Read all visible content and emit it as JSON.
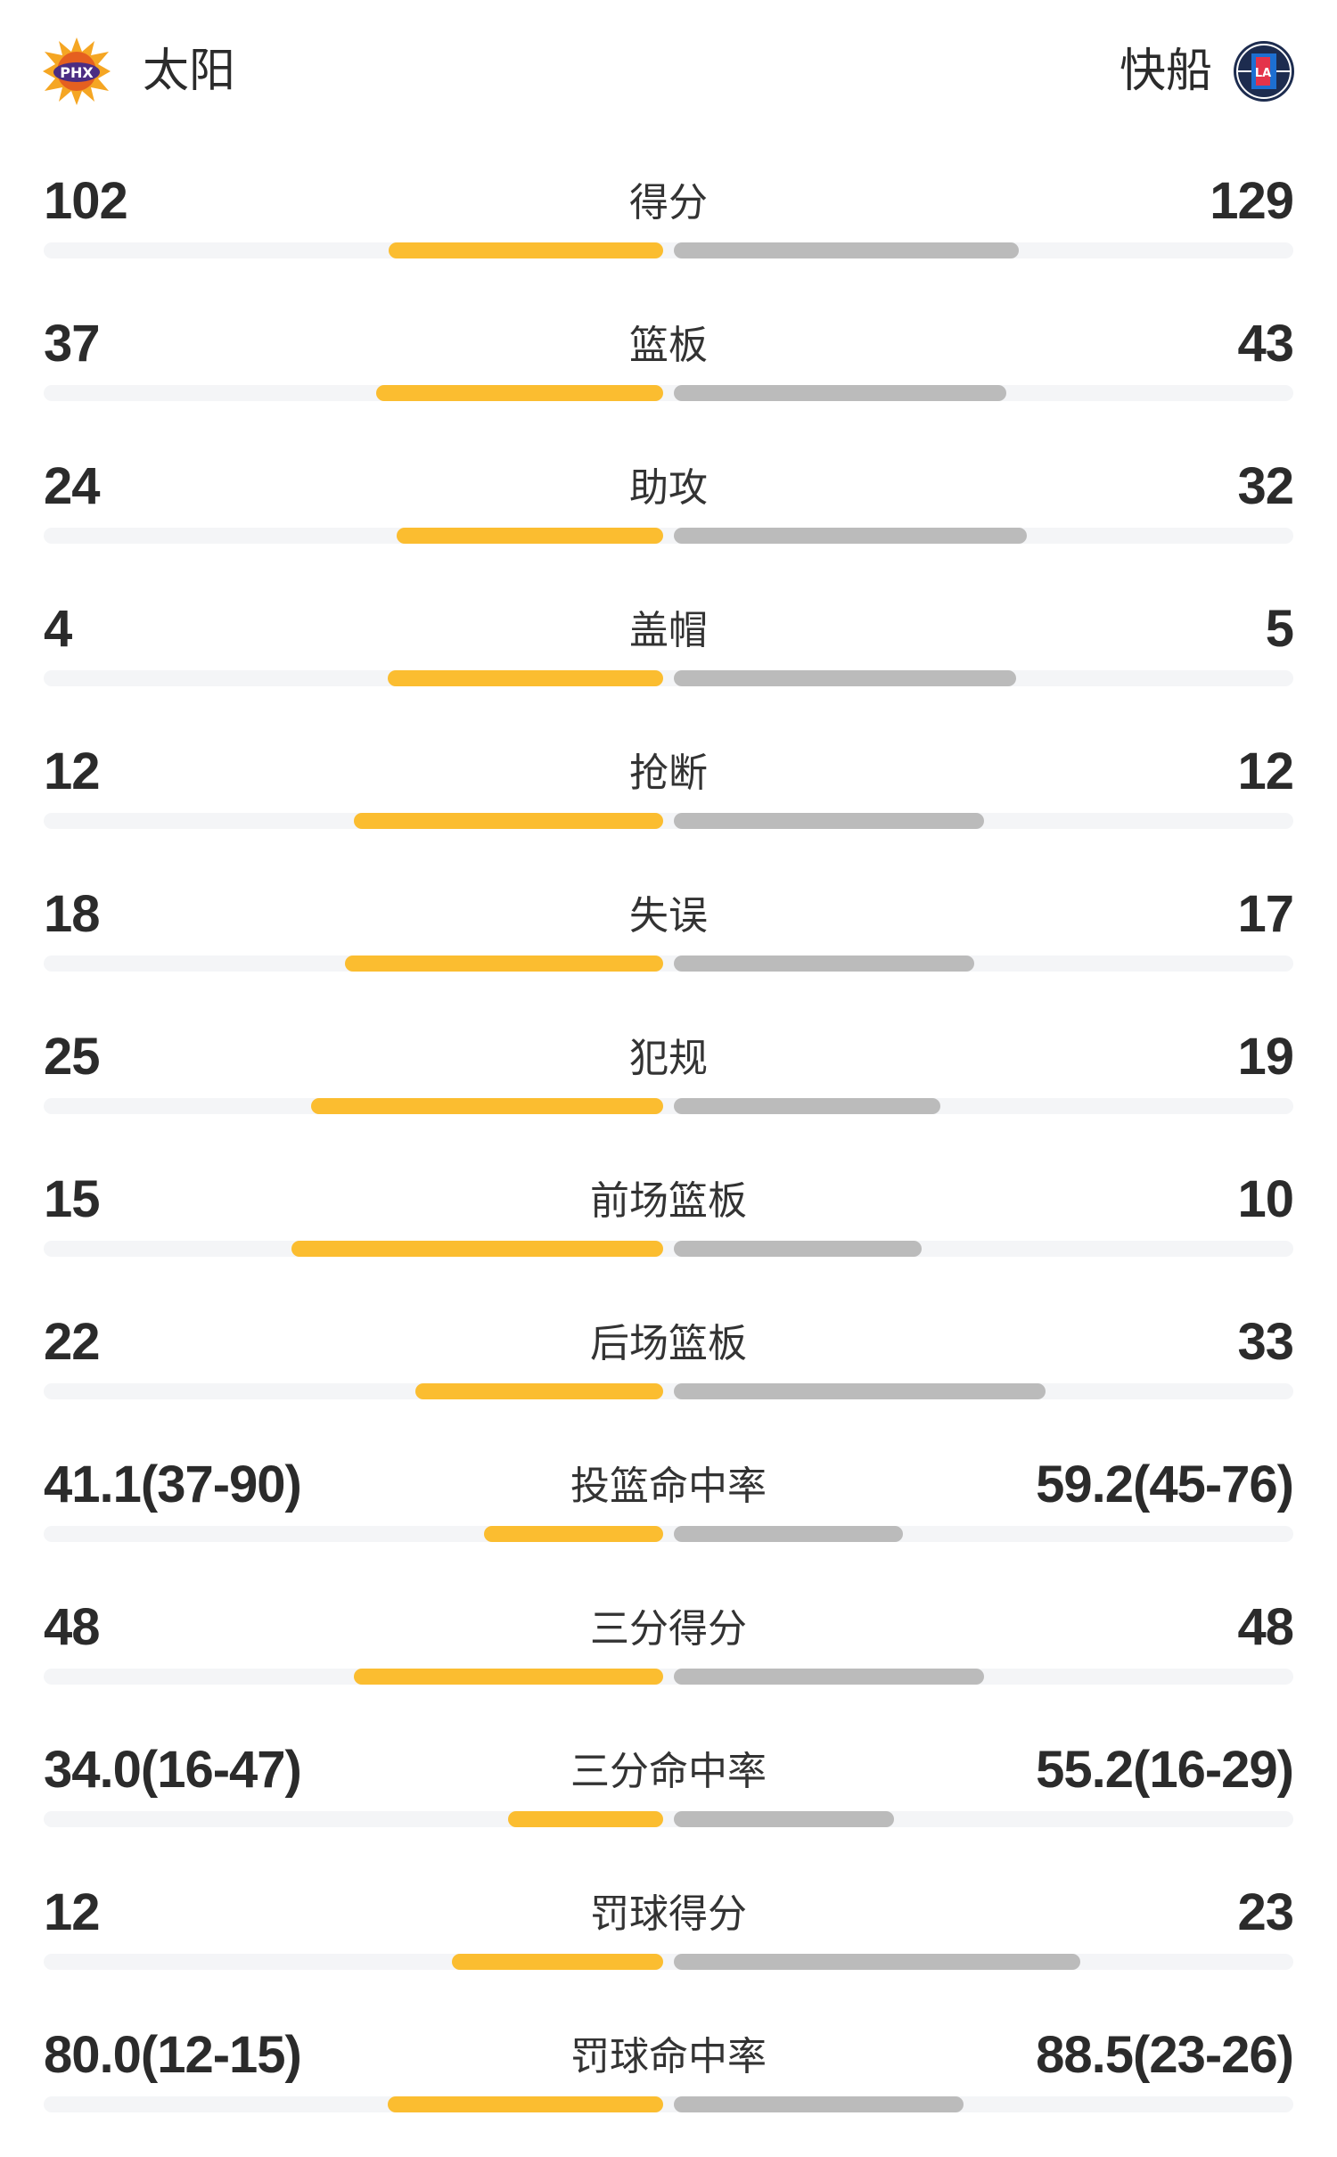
{
  "header": {
    "home_team": "太阳",
    "away_team": "快船",
    "home_logo_text": "PHX",
    "away_logo_text": "LA"
  },
  "colors": {
    "home_bar": "#fbbd30",
    "away_bar": "#bbbbbb",
    "track": "#f4f5f7"
  },
  "stats": [
    {
      "label": "得分",
      "home": "102",
      "away": "129",
      "home_fill": 0.443,
      "away_fill": 0.557
    },
    {
      "label": "篮板",
      "home": "37",
      "away": "43",
      "home_fill": 0.463,
      "away_fill": 0.537
    },
    {
      "label": "助攻",
      "home": "24",
      "away": "32",
      "home_fill": 0.43,
      "away_fill": 0.57
    },
    {
      "label": "盖帽",
      "home": "4",
      "away": "5",
      "home_fill": 0.445,
      "away_fill": 0.553
    },
    {
      "label": "抢断",
      "home": "12",
      "away": "12",
      "home_fill": 0.5,
      "away_fill": 0.5
    },
    {
      "label": "失误",
      "home": "18",
      "away": "17",
      "home_fill": 0.513,
      "away_fill": 0.485
    },
    {
      "label": "犯规",
      "home": "25",
      "away": "19",
      "home_fill": 0.568,
      "away_fill": 0.43
    },
    {
      "label": "前场篮板",
      "home": "15",
      "away": "10",
      "home_fill": 0.6,
      "away_fill": 0.4
    },
    {
      "label": "后场篮板",
      "home": "22",
      "away": "33",
      "home_fill": 0.4,
      "away_fill": 0.6
    },
    {
      "label": "投篮命中率",
      "home": "41.1(37-90)",
      "away": "59.2(45-76)",
      "home_fill": 0.289,
      "away_fill": 0.37
    },
    {
      "label": "三分得分",
      "home": "48",
      "away": "48",
      "home_fill": 0.5,
      "away_fill": 0.5
    },
    {
      "label": "三分命中率",
      "home": "34.0(16-47)",
      "away": "55.2(16-29)",
      "home_fill": 0.251,
      "away_fill": 0.355
    },
    {
      "label": "罚球得分",
      "home": "12",
      "away": "23",
      "home_fill": 0.341,
      "away_fill": 0.656
    },
    {
      "label": "罚球命中率",
      "home": "80.0(12-15)",
      "away": "88.5(23-26)",
      "home_fill": 0.445,
      "away_fill": 0.467
    }
  ]
}
